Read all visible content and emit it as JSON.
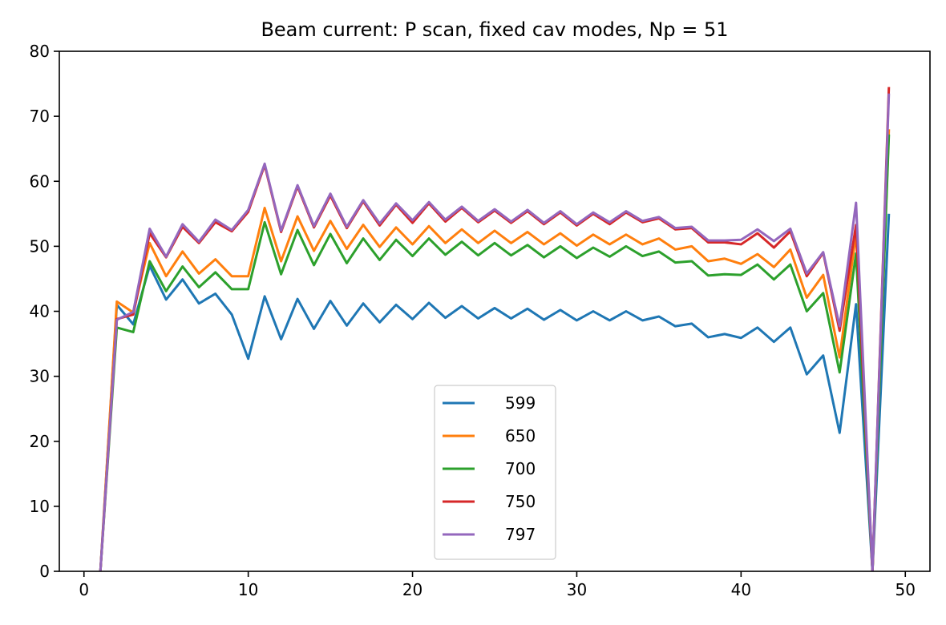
{
  "chart_data": {
    "type": "line",
    "title": "Beam current: P scan, fixed cav modes, Np = 51",
    "xlabel": "",
    "ylabel": "",
    "xlim": [
      -1.5,
      51.5
    ],
    "ylim": [
      0,
      80
    ],
    "xticks": [
      0,
      10,
      20,
      30,
      40,
      50
    ],
    "yticks": [
      0,
      10,
      20,
      30,
      40,
      50,
      60,
      70,
      80
    ],
    "grid": false,
    "legend_position": "lower center",
    "x": [
      1,
      2,
      3,
      4,
      5,
      6,
      7,
      8,
      9,
      10,
      11,
      12,
      13,
      14,
      15,
      16,
      17,
      18,
      19,
      20,
      21,
      22,
      23,
      24,
      25,
      26,
      27,
      28,
      29,
      30,
      31,
      32,
      33,
      34,
      35,
      36,
      37,
      38,
      39,
      40,
      41,
      42,
      43,
      44,
      45,
      46,
      47,
      48,
      49
    ],
    "series": [
      {
        "name": "599",
        "color": "#1f77b4",
        "values": [
          0,
          41.0,
          38.0,
          47.0,
          41.8,
          44.9,
          41.2,
          42.7,
          39.5,
          32.7,
          42.3,
          35.7,
          41.9,
          37.3,
          41.6,
          37.8,
          41.2,
          38.3,
          41.0,
          38.8,
          41.3,
          39.0,
          40.8,
          38.9,
          40.5,
          38.9,
          40.4,
          38.7,
          40.2,
          38.6,
          40.0,
          38.6,
          40.0,
          38.6,
          39.2,
          37.7,
          38.1,
          36.0,
          36.5,
          35.9,
          37.5,
          35.3,
          37.5,
          30.3,
          33.2,
          21.3,
          41.1,
          0,
          55.0
        ]
      },
      {
        "name": "650",
        "color": "#ff7f0e",
        "values": [
          0,
          41.5,
          39.8,
          50.5,
          45.4,
          49.2,
          45.8,
          48.0,
          45.4,
          45.4,
          55.9,
          47.7,
          54.6,
          49.3,
          53.9,
          49.6,
          53.3,
          49.9,
          52.9,
          50.3,
          53.1,
          50.5,
          52.6,
          50.5,
          52.4,
          50.5,
          52.2,
          50.3,
          52.0,
          50.1,
          51.8,
          50.3,
          51.8,
          50.3,
          51.2,
          49.5,
          50.0,
          47.7,
          48.1,
          47.3,
          48.8,
          46.8,
          49.5,
          42.1,
          45.6,
          32.9,
          52.0,
          0,
          68.0
        ]
      },
      {
        "name": "700",
        "color": "#2ca02c",
        "values": [
          0,
          37.5,
          36.8,
          47.7,
          43.1,
          46.9,
          43.7,
          46.0,
          43.4,
          43.4,
          53.7,
          45.7,
          52.5,
          47.1,
          51.9,
          47.4,
          51.2,
          47.9,
          51.0,
          48.5,
          51.2,
          48.7,
          50.7,
          48.6,
          50.5,
          48.6,
          50.2,
          48.3,
          50.0,
          48.2,
          49.8,
          48.4,
          50.0,
          48.5,
          49.2,
          47.5,
          47.7,
          45.5,
          45.7,
          45.6,
          47.2,
          44.9,
          47.2,
          40.0,
          42.8,
          30.6,
          48.9,
          0,
          67.2
        ]
      },
      {
        "name": "750",
        "color": "#d62728",
        "values": [
          0,
          38.8,
          39.5,
          52.0,
          48.3,
          53.0,
          50.5,
          53.7,
          52.3,
          55.3,
          62.5,
          52.2,
          59.2,
          52.9,
          57.8,
          52.8,
          56.9,
          53.2,
          56.4,
          53.6,
          56.6,
          53.8,
          55.9,
          53.7,
          55.5,
          53.6,
          55.4,
          53.4,
          55.2,
          53.2,
          55.0,
          53.4,
          55.2,
          53.7,
          54.3,
          52.6,
          52.8,
          50.6,
          50.6,
          50.3,
          52.0,
          49.8,
          52.3,
          45.4,
          49.0,
          37.0,
          53.3,
          0,
          74.5
        ]
      },
      {
        "name": "797",
        "color": "#9467bd",
        "values": [
          0,
          38.7,
          39.9,
          52.7,
          48.4,
          53.4,
          50.7,
          54.1,
          52.5,
          55.6,
          62.7,
          52.4,
          59.4,
          53.1,
          58.1,
          53.0,
          57.1,
          53.5,
          56.6,
          54.0,
          56.8,
          54.1,
          56.1,
          53.9,
          55.7,
          53.8,
          55.6,
          53.6,
          55.4,
          53.4,
          55.2,
          53.7,
          55.4,
          53.9,
          54.5,
          52.8,
          53.0,
          50.9,
          50.9,
          51.0,
          52.6,
          50.8,
          52.7,
          45.8,
          49.1,
          37.7,
          56.7,
          0,
          73.5
        ]
      }
    ]
  }
}
